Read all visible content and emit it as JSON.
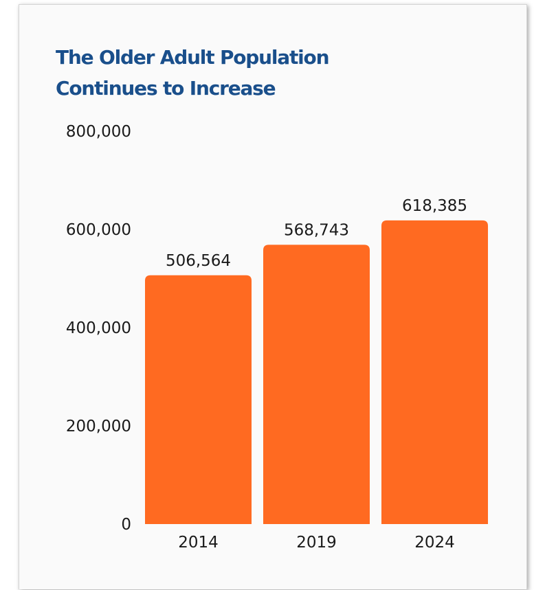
{
  "card": {
    "title": "The Older Adult Population\nContinues to Increase"
  },
  "colors": {
    "title": "#1a4f8b",
    "bar": "#ff6a21",
    "text": "#1a1a1a"
  },
  "chart_data": {
    "type": "bar",
    "title": "The Older Adult Population Continues to Increase",
    "xlabel": "",
    "ylabel": "",
    "categories": [
      "2014",
      "2019",
      "2024"
    ],
    "values": [
      506564,
      568743,
      618385
    ],
    "value_labels": [
      "506,564",
      "568,743",
      "618,385"
    ],
    "ylim": [
      0,
      800000
    ],
    "yticks": [
      0,
      200000,
      400000,
      600000,
      800000
    ],
    "ytick_labels": [
      "0",
      "200,000",
      "400,000",
      "600,000",
      "800,000"
    ],
    "grid": false,
    "legend": "none"
  }
}
